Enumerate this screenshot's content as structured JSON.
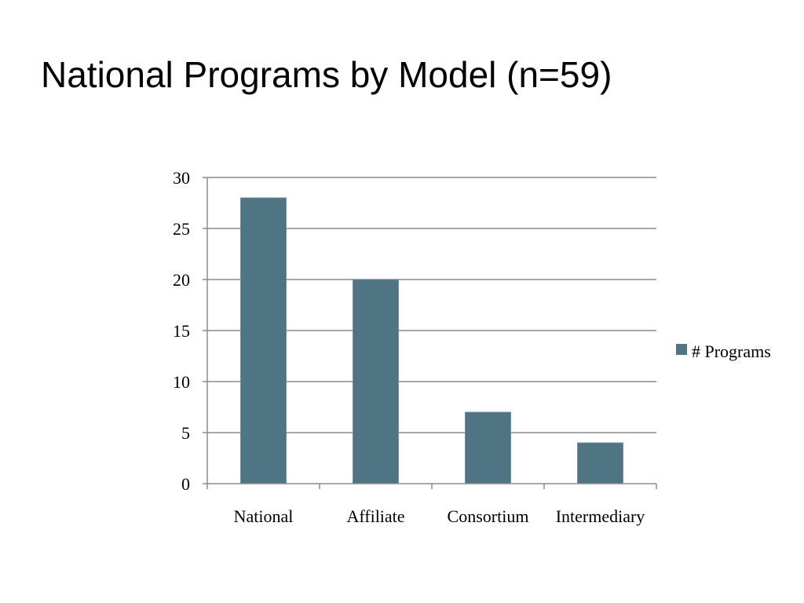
{
  "slide": {
    "title": "National Programs by Model (n=59)"
  },
  "chart_data": {
    "type": "bar",
    "title": "",
    "xlabel": "",
    "ylabel": "",
    "categories": [
      "National",
      "Affiliate",
      "Consortium",
      "Intermediary"
    ],
    "series": [
      {
        "name": "# Programs",
        "values": [
          28,
          20,
          7,
          4
        ]
      }
    ],
    "ylim": [
      0,
      30
    ],
    "yticks": [
      0,
      5,
      10,
      15,
      20,
      25,
      30
    ],
    "grid": true,
    "legend": "right",
    "bar_color": "#4f7585"
  }
}
